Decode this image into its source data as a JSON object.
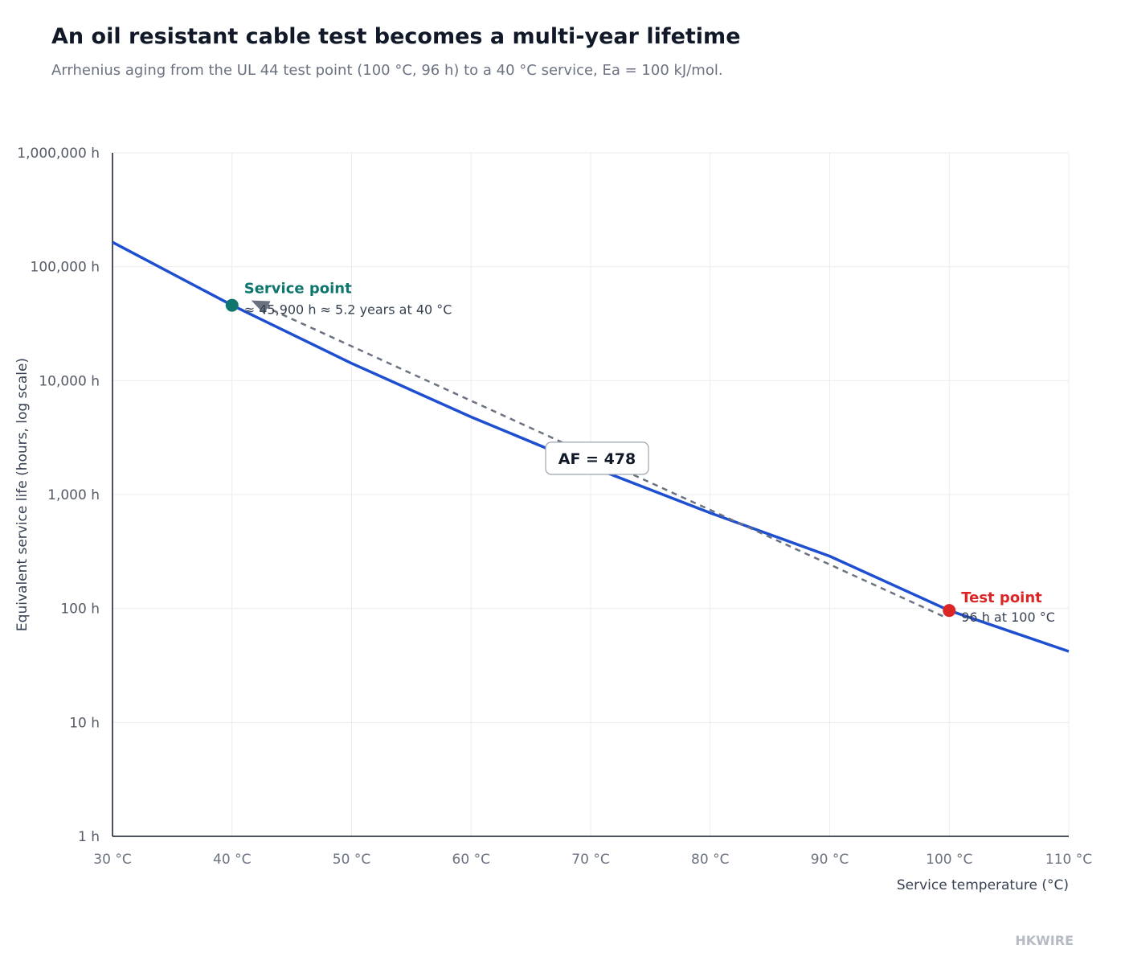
{
  "header": {
    "title": "An oil resistant cable test becomes a multi-year lifetime",
    "subtitle": "Arrhenius aging from the UL 44 test point (100 °C, 96 h) to a 40 °C service, Ea = 100 kJ/mol."
  },
  "brand": "HKWIRE",
  "colors": {
    "curve": "#1f4fd1",
    "service": "#0f766e",
    "test": "#dc2626",
    "connector": "#6b7280",
    "grid": "#ececec",
    "axis": "#111827"
  },
  "chart_data": {
    "type": "line",
    "xlabel": "Service temperature (°C)",
    "ylabel": "Equivalent service life (hours, log scale)",
    "xlim": [
      30,
      110
    ],
    "ylim": [
      1,
      1000000
    ],
    "y_scale": "log",
    "grid": true,
    "x_ticks": [
      30,
      40,
      50,
      60,
      70,
      80,
      90,
      100,
      110
    ],
    "x_tick_labels": [
      "30 °C",
      "40 °C",
      "50 °C",
      "60 °C",
      "70 °C",
      "80 °C",
      "90 °C",
      "100 °C",
      "110 °C"
    ],
    "y_ticks": [
      1,
      10,
      100,
      1000,
      10000,
      100000,
      1000000
    ],
    "y_tick_labels": [
      "1 h",
      "10 h",
      "100 h",
      "1,000 h",
      "10,000 h",
      "100,000 h",
      "1,000,000 h"
    ],
    "series": [
      {
        "x": [
          30,
          40,
          50,
          60,
          70,
          80,
          90,
          100,
          110
        ],
        "values": [
          164000,
          45900,
          14200,
          4800,
          1760,
          690,
          288,
          96,
          42
        ]
      }
    ],
    "points": [
      {
        "label": "Service point",
        "detail": "≈ 45,900 h ≈ 5.2 years at 40 °C",
        "x": 40,
        "y": 45900
      },
      {
        "label": "Test point",
        "detail": "96 h at 100 °C",
        "x": 100,
        "y": 96
      }
    ],
    "annotation": {
      "text": "AF = 478"
    }
  }
}
